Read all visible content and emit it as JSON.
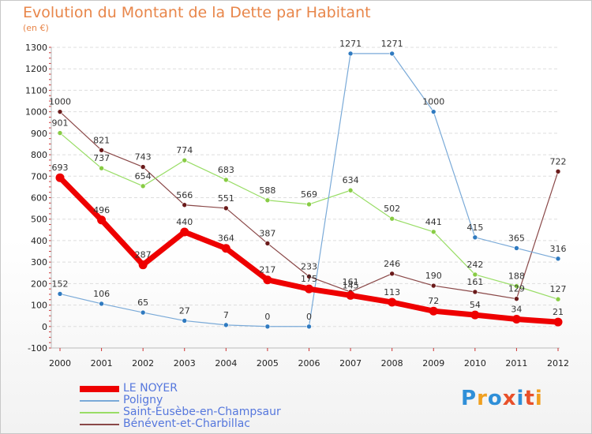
{
  "header": {
    "title": "Evolution du Montant de la Dette par Habitant",
    "unit": "(en €)"
  },
  "logo": {
    "text": "Proxiti",
    "colors": [
      "#2f8fd8",
      "#f0a020",
      "#2f8fd8",
      "#e8502a",
      "#2f8fd8",
      "#e8502a",
      "#f0a020"
    ]
  },
  "chart_data": {
    "type": "line",
    "title": "Evolution du Montant de la Dette par Habitant",
    "ylabel": "(en €)",
    "xlabel": "",
    "x": [
      "2000",
      "2001",
      "2002",
      "2003",
      "2004",
      "2005",
      "2006",
      "2007",
      "2008",
      "2009",
      "2010",
      "2011",
      "2012"
    ],
    "ylim": [
      -100,
      1300
    ],
    "yticks": [
      "-100",
      "0",
      "100",
      "200",
      "300",
      "400",
      "500",
      "600",
      "700",
      "800",
      "900",
      "1000",
      "1100",
      "1200",
      "1300"
    ],
    "grid": "horizontal",
    "legend_position": "bottom-left",
    "series": [
      {
        "name": "LE NOYER",
        "color": "#ee0000",
        "marker": "#ee0000",
        "width": 7,
        "values": [
          693,
          496,
          287,
          440,
          364,
          217,
          175,
          145,
          113,
          72,
          54,
          34,
          21
        ],
        "labels": [
          "693",
          "496",
          "287",
          "440",
          "364",
          "217",
          "175",
          "145",
          "113",
          "72",
          "54",
          "34",
          "21"
        ]
      },
      {
        "name": "Poligny",
        "color": "#7aaad8",
        "marker": "#2f7ac0",
        "width": 1.2,
        "values": [
          152,
          106,
          65,
          27,
          7,
          0,
          0,
          1271,
          1271,
          1000,
          415,
          365,
          316
        ],
        "labels": [
          "152",
          "106",
          "65",
          "27",
          "7",
          "0",
          "0",
          "1271",
          "1271",
          "1000",
          "415",
          "365",
          "316"
        ]
      },
      {
        "name": "Saint-Eusèbe-en-Champsaur",
        "color": "#99dd66",
        "marker": "#88cc44",
        "width": 1.2,
        "values": [
          901,
          737,
          654,
          774,
          683,
          588,
          569,
          634,
          502,
          441,
          242,
          188,
          127
        ],
        "labels": [
          "901",
          "737",
          "654",
          "774",
          "683",
          "588",
          "569",
          "634",
          "502",
          "441",
          "242",
          "188",
          "127"
        ]
      },
      {
        "name": "Bénévent-et-Charbillac",
        "color": "#8a4848",
        "marker": "#6a1a1a",
        "width": 1.2,
        "values": [
          1000,
          821,
          743,
          566,
          551,
          387,
          233,
          161,
          246,
          190,
          161,
          129,
          722
        ],
        "labels": [
          "1000",
          "821",
          "743",
          "566",
          "551",
          "387",
          "233",
          "161",
          "246",
          "190",
          "161",
          "129",
          "722"
        ]
      }
    ]
  }
}
